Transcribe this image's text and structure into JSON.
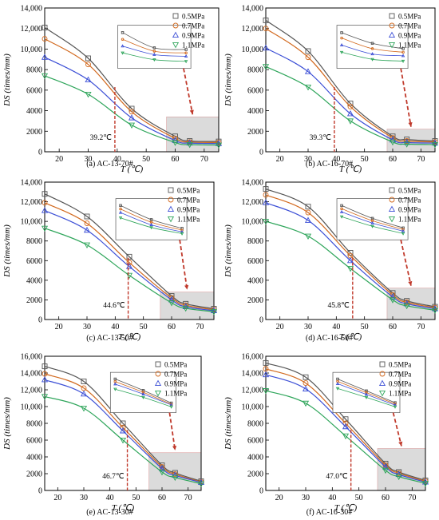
{
  "figure": {
    "colors": {
      "0.5MPa": "#555555",
      "0.7MPa": "#d2691e",
      "0.9MPa": "#3c4fd6",
      "1.1MPa": "#2ea55a",
      "marker_line": "#c0392b",
      "shade": "#cfcfcf"
    },
    "marker_shapes": {
      "0.5MPa": "square",
      "0.7MPa": "circle",
      "0.9MPa": "triangle-up",
      "1.1MPa": "triangle-down"
    }
  },
  "chart_data": [
    {
      "type": "scatter",
      "panel_label": "(a) AC-13-70#",
      "xlabel": "T (℃)",
      "ylabel": "DS (times/mm)",
      "xlim": [
        15,
        75
      ],
      "ylim": [
        0,
        14000
      ],
      "xticks": [
        20,
        30,
        40,
        50,
        60,
        70
      ],
      "yticks": [
        0,
        2000,
        4000,
        6000,
        8000,
        10000,
        12000,
        14000
      ],
      "ytick_labels": [
        "0",
        "2000",
        "4000",
        "6000",
        "8000",
        "10,000",
        "12,000",
        "14,000"
      ],
      "grid": false,
      "legend_position": "top-right",
      "annotation": "39.2℃",
      "annotation_x": 39.2,
      "highlight_x": [
        57,
        75
      ],
      "highlight_y": [
        0,
        3400
      ],
      "series": [
        {
          "name": "0.5MPa",
          "x": [
            15,
            30,
            45,
            60,
            65,
            75
          ],
          "y": [
            12100,
            9100,
            4200,
            1500,
            1050,
            1000
          ]
        },
        {
          "name": "0.7MPa",
          "x": [
            15,
            30,
            45,
            60,
            65,
            75
          ],
          "y": [
            11000,
            8500,
            3900,
            1300,
            950,
            900
          ]
        },
        {
          "name": "0.9MPa",
          "x": [
            15,
            30,
            45,
            60,
            65,
            75
          ],
          "y": [
            9200,
            7000,
            3300,
            1100,
            850,
            800
          ]
        },
        {
          "name": "1.1MPa",
          "x": [
            15,
            30,
            45,
            60,
            65,
            75
          ],
          "y": [
            7400,
            5600,
            2600,
            900,
            700,
            650
          ]
        }
      ]
    },
    {
      "type": "scatter",
      "panel_label": "(b) AC-16-70#",
      "xlabel": "T (℃)",
      "ylabel": "DS (times/mm)",
      "xlim": [
        15,
        75
      ],
      "ylim": [
        0,
        14000
      ],
      "xticks": [
        20,
        30,
        40,
        50,
        60,
        70
      ],
      "yticks": [
        0,
        2000,
        4000,
        6000,
        8000,
        10000,
        12000,
        14000
      ],
      "ytick_labels": [
        "0",
        "2000",
        "4000",
        "6000",
        "8000",
        "10,000",
        "12,000",
        "14,000"
      ],
      "grid": false,
      "legend_position": "top-right",
      "annotation": "39.3℃",
      "annotation_x": 39.3,
      "highlight_x": [
        58,
        75
      ],
      "highlight_y": [
        0,
        2200
      ],
      "series": [
        {
          "name": "0.5MPa",
          "x": [
            15,
            30,
            45,
            60,
            65,
            75
          ],
          "y": [
            12800,
            9800,
            4700,
            1500,
            1200,
            1050
          ]
        },
        {
          "name": "0.7MPa",
          "x": [
            15,
            30,
            45,
            60,
            65,
            75
          ],
          "y": [
            12000,
            9200,
            4400,
            1350,
            1050,
            950
          ]
        },
        {
          "name": "0.9MPa",
          "x": [
            15,
            30,
            45,
            60,
            65,
            75
          ],
          "y": [
            10100,
            7800,
            3700,
            1150,
            900,
            850
          ]
        },
        {
          "name": "1.1MPa",
          "x": [
            15,
            30,
            45,
            60,
            65,
            75
          ],
          "y": [
            8300,
            6300,
            3000,
            950,
            750,
            700
          ]
        }
      ]
    },
    {
      "type": "scatter",
      "panel_label": "(c) AC-13-50#",
      "xlabel": "T (℃)",
      "ylabel": "DS (times/mm)",
      "xlim": [
        15,
        75
      ],
      "ylim": [
        0,
        14000
      ],
      "xticks": [
        20,
        30,
        40,
        50,
        60,
        70
      ],
      "yticks": [
        0,
        2000,
        4000,
        6000,
        8000,
        10000,
        12000,
        14000
      ],
      "ytick_labels": [
        "0",
        "2000",
        "4000",
        "6000",
        "8000",
        "10,000",
        "12,000",
        "14,000"
      ],
      "grid": false,
      "legend_position": "top-right",
      "annotation": "44.6℃",
      "annotation_x": 44.6,
      "highlight_x": [
        56,
        75
      ],
      "highlight_y": [
        0,
        2800
      ],
      "series": [
        {
          "name": "0.5MPa",
          "x": [
            15,
            30,
            45,
            60,
            65,
            75
          ],
          "y": [
            12800,
            10500,
            6400,
            2400,
            1600,
            1100
          ]
        },
        {
          "name": "0.7MPa",
          "x": [
            15,
            30,
            45,
            60,
            65,
            75
          ],
          "y": [
            11900,
            9800,
            5800,
            2200,
            1450,
            1000
          ]
        },
        {
          "name": "0.9MPa",
          "x": [
            15,
            30,
            45,
            60,
            65,
            75
          ],
          "y": [
            11100,
            9100,
            5400,
            2000,
            1300,
            900
          ]
        },
        {
          "name": "1.1MPa",
          "x": [
            15,
            30,
            45,
            60,
            65,
            75
          ],
          "y": [
            9300,
            7600,
            4500,
            1700,
            1150,
            800
          ]
        }
      ]
    },
    {
      "type": "scatter",
      "panel_label": "(d) AC-16-50#",
      "xlabel": "T (℃)",
      "ylabel": "DS (times/mm)",
      "xlim": [
        15,
        75
      ],
      "ylim": [
        0,
        14000
      ],
      "xticks": [
        20,
        30,
        40,
        50,
        60,
        70
      ],
      "yticks": [
        0,
        2000,
        4000,
        6000,
        8000,
        10000,
        12000,
        14000
      ],
      "ytick_labels": [
        "0",
        "2000",
        "4000",
        "6000",
        "8000",
        "10,000",
        "12,000",
        "14,000"
      ],
      "grid": false,
      "legend_position": "top-right",
      "annotation": "45.8℃",
      "annotation_x": 45.8,
      "highlight_x": [
        58,
        75
      ],
      "highlight_y": [
        0,
        3200
      ],
      "series": [
        {
          "name": "0.5MPa",
          "x": [
            15,
            30,
            45,
            60,
            65,
            75
          ],
          "y": [
            13300,
            11500,
            6800,
            2700,
            1900,
            1300
          ]
        },
        {
          "name": "0.7MPa",
          "x": [
            15,
            30,
            45,
            60,
            65,
            75
          ],
          "y": [
            12700,
            10900,
            6500,
            2500,
            1750,
            1200
          ]
        },
        {
          "name": "0.9MPa",
          "x": [
            15,
            30,
            45,
            60,
            65,
            75
          ],
          "y": [
            11900,
            10100,
            6000,
            2300,
            1600,
            1100
          ]
        },
        {
          "name": "1.1MPa",
          "x": [
            15,
            30,
            45,
            60,
            65,
            75
          ],
          "y": [
            10000,
            8500,
            5200,
            2000,
            1400,
            950
          ]
        }
      ]
    },
    {
      "type": "scatter",
      "panel_label": "(e) AC-13-30#",
      "xlabel": "T (℃)",
      "ylabel": "DS (times/mm)",
      "xlim": [
        15,
        75
      ],
      "ylim": [
        0,
        16000
      ],
      "xticks": [
        20,
        30,
        40,
        50,
        60,
        70
      ],
      "yticks": [
        0,
        2000,
        4000,
        6000,
        8000,
        10000,
        12000,
        14000,
        16000
      ],
      "ytick_labels": [
        "0",
        "2000",
        "4000",
        "6000",
        "8000",
        "10,000",
        "12,000",
        "14,000",
        "16,000"
      ],
      "grid": false,
      "legend_position": "top-right",
      "annotation": "46.7℃",
      "annotation_x": 46.7,
      "highlight_x": [
        55,
        75
      ],
      "highlight_y": [
        0,
        4500
      ],
      "series": [
        {
          "name": "0.5MPa",
          "x": [
            15,
            30,
            45,
            60,
            65,
            75
          ],
          "y": [
            14800,
            13000,
            8000,
            3000,
            2100,
            1100
          ]
        },
        {
          "name": "0.7MPa",
          "x": [
            15,
            30,
            45,
            60,
            65,
            75
          ],
          "y": [
            13900,
            12200,
            7500,
            2800,
            1950,
            1000
          ]
        },
        {
          "name": "0.9MPa",
          "x": [
            15,
            30,
            45,
            60,
            65,
            75
          ],
          "y": [
            13200,
            11500,
            7100,
            2600,
            1800,
            950
          ]
        },
        {
          "name": "1.1MPa",
          "x": [
            15,
            30,
            45,
            60,
            65,
            75
          ],
          "y": [
            11200,
            9800,
            6000,
            2200,
            1550,
            800
          ]
        }
      ]
    },
    {
      "type": "scatter",
      "panel_label": "(f) AC-16-30#",
      "xlabel": "T (℃)",
      "ylabel": "DS (times/mm)",
      "xlim": [
        15,
        75
      ],
      "ylim": [
        0,
        16000
      ],
      "xticks": [
        20,
        30,
        40,
        50,
        60,
        70
      ],
      "yticks": [
        0,
        2000,
        4000,
        6000,
        8000,
        10000,
        12000,
        14000,
        16000
      ],
      "ytick_labels": [
        "0",
        "2000",
        "4000",
        "6000",
        "8000",
        "10,000",
        "12,000",
        "14,000",
        "16,000"
      ],
      "grid": false,
      "legend_position": "top-right",
      "annotation": "47.0℃",
      "annotation_x": 47.0,
      "highlight_x": [
        57,
        75
      ],
      "highlight_y": [
        0,
        5000
      ],
      "series": [
        {
          "name": "0.5MPa",
          "x": [
            15,
            30,
            45,
            60,
            65,
            75
          ],
          "y": [
            15200,
            13500,
            8500,
            3200,
            2200,
            1200
          ]
        },
        {
          "name": "0.7MPa",
          "x": [
            15,
            30,
            45,
            60,
            65,
            75
          ],
          "y": [
            14500,
            12800,
            8000,
            3000,
            2050,
            1100
          ]
        },
        {
          "name": "0.9MPa",
          "x": [
            15,
            30,
            45,
            60,
            65,
            75
          ],
          "y": [
            13800,
            12100,
            7600,
            2800,
            1900,
            1000
          ]
        },
        {
          "name": "1.1MPa",
          "x": [
            15,
            30,
            45,
            60,
            65,
            75
          ],
          "y": [
            11900,
            10400,
            6500,
            2400,
            1650,
            850
          ]
        }
      ]
    }
  ]
}
